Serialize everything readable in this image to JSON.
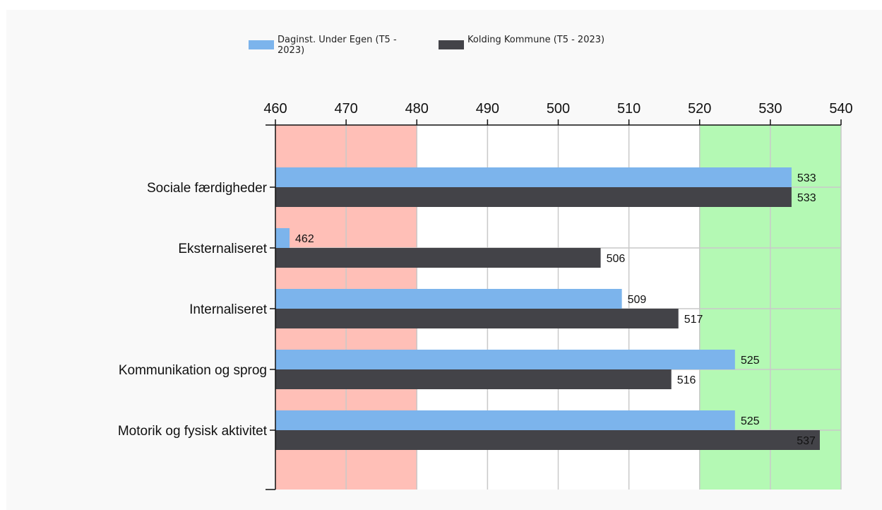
{
  "chart_data": {
    "type": "bar",
    "orientation": "horizontal",
    "title": "",
    "xlabel": "",
    "ylabel": "",
    "xlim": [
      460,
      540
    ],
    "x_ticks": [
      460,
      470,
      480,
      490,
      500,
      510,
      520,
      530,
      540
    ],
    "grid": true,
    "legend_position": "top-center",
    "categories": [
      "Sociale færdigheder",
      "Eksternaliseret",
      "Internaliseret",
      "Kommunikation og sprog",
      "Motorik og fysisk aktivitet"
    ],
    "series": [
      {
        "name": "Daginst. Under Egen (T5 - 2023)",
        "legend_lines": [
          "Daginst. Under Egen (T5 -",
          "2023)"
        ],
        "color": "#7cb4ec",
        "values": [
          533,
          462,
          509,
          525,
          525
        ]
      },
      {
        "name": "Kolding Kommune (T5 - 2023)",
        "legend_lines": [
          "Kolding Kommune (T5 - 2023)"
        ],
        "color": "#434348",
        "values": [
          533,
          506,
          517,
          516,
          537
        ]
      }
    ],
    "bands": [
      {
        "from": 460,
        "to": 480,
        "color": "#ffbfb7"
      },
      {
        "from": 520,
        "to": 540,
        "color": "#b4f9b4"
      }
    ]
  }
}
